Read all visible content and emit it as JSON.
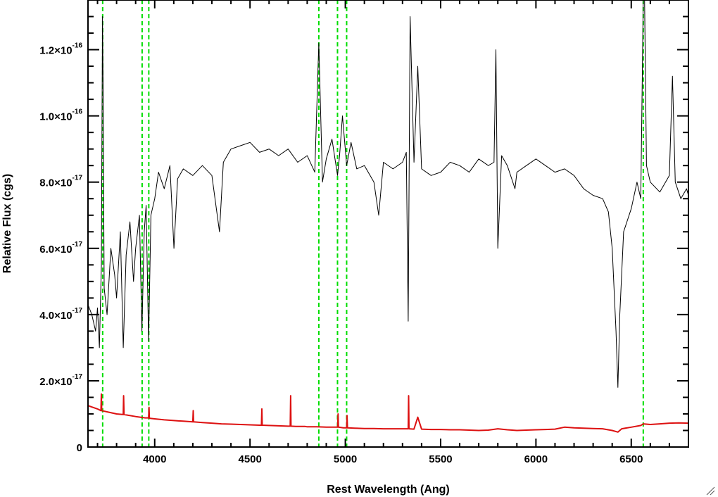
{
  "chart_data": {
    "type": "line",
    "title": "",
    "xlabel": "Rest Wavelength (Ang)",
    "ylabel": "Relative Flux (cgs)",
    "xlim": [
      3650,
      6800
    ],
    "ylim": [
      0,
      1.35e-16
    ],
    "x_ticks": [
      4000,
      4500,
      5000,
      5500,
      6000,
      6500
    ],
    "x_tick_labels": [
      "4000",
      "4500",
      "5000",
      "5500",
      "6000",
      "6500"
    ],
    "y_ticks": [
      {
        "value": 0,
        "mant": "0",
        "exp": ""
      },
      {
        "value": 2e-17,
        "mant": "2.0×10",
        "exp": "-17"
      },
      {
        "value": 4e-17,
        "mant": "4.0×10",
        "exp": "-17"
      },
      {
        "value": 6e-17,
        "mant": "6.0×10",
        "exp": "-17"
      },
      {
        "value": 8e-17,
        "mant": "8.0×10",
        "exp": "-17"
      },
      {
        "value": 1e-16,
        "mant": "1.0×10",
        "exp": "-16"
      },
      {
        "value": 1.2e-16,
        "mant": "1.2×10",
        "exp": "-16"
      }
    ],
    "grid": false,
    "legend": "none",
    "series": [
      {
        "role": "spectrum",
        "color": "#000000",
        "x": [
          3650,
          3670,
          3690,
          3700,
          3710,
          3720,
          3726,
          3729,
          3735,
          3750,
          3770,
          3790,
          3800,
          3820,
          3835,
          3850,
          3870,
          3889,
          3900,
          3920,
          3933,
          3945,
          3955,
          3968,
          3980,
          4000,
          4020,
          4050,
          4080,
          4101,
          4120,
          4150,
          4200,
          4250,
          4300,
          4340,
          4360,
          4400,
          4450,
          4500,
          4550,
          4600,
          4650,
          4700,
          4750,
          4800,
          4840,
          4861,
          4880,
          4900,
          4930,
          4959,
          4970,
          4985,
          5007,
          5030,
          5060,
          5100,
          5150,
          5175,
          5200,
          5250,
          5300,
          5320,
          5330,
          5340,
          5360,
          5380,
          5400,
          5450,
          5500,
          5550,
          5600,
          5650,
          5700,
          5750,
          5780,
          5790,
          5800,
          5820,
          5850,
          5890,
          5900,
          5950,
          6000,
          6050,
          6100,
          6150,
          6200,
          6250,
          6300,
          6350,
          6380,
          6400,
          6420,
          6430,
          6440,
          6460,
          6500,
          6530,
          6550,
          6563,
          6570,
          6580,
          6600,
          6650,
          6700,
          6716,
          6731,
          6760,
          6790,
          6800
        ],
        "y": [
          4.3e-17,
          4e-17,
          3.5e-17,
          4.2e-17,
          3e-17,
          5.5e-17,
          1.3e-16,
          1.1e-16,
          4.8e-17,
          4e-17,
          6e-17,
          5.2e-17,
          4.5e-17,
          6.5e-17,
          3e-17,
          5.8e-17,
          6.8e-17,
          5e-17,
          6e-17,
          7e-17,
          3.5e-17,
          6.5e-17,
          7.3e-17,
          3.2e-17,
          7e-17,
          7.5e-17,
          8.3e-17,
          7.8e-17,
          8.5e-17,
          6e-17,
          8.1e-17,
          8.4e-17,
          8.2e-17,
          8.5e-17,
          8.2e-17,
          6.5e-17,
          8.6e-17,
          9e-17,
          9.1e-17,
          9.2e-17,
          8.9e-17,
          9e-17,
          8.8e-17,
          9e-17,
          8.6e-17,
          8.8e-17,
          8.3e-17,
          1.22e-16,
          8e-17,
          8.7e-17,
          9.3e-17,
          8.2e-17,
          8.8e-17,
          1e-16,
          8.5e-17,
          9.2e-17,
          8.4e-17,
          8.5e-17,
          8e-17,
          7e-17,
          8.6e-17,
          8.4e-17,
          8.6e-17,
          8.9e-17,
          3.8e-17,
          1.3e-16,
          8.6e-17,
          1.15e-16,
          8.4e-17,
          8.2e-17,
          8.3e-17,
          8.6e-17,
          8.5e-17,
          8.3e-17,
          8.7e-17,
          8.5e-17,
          8.6e-17,
          1.2e-16,
          6e-17,
          8.8e-17,
          8.5e-17,
          7.8e-17,
          8.3e-17,
          8.5e-17,
          8.7e-17,
          8.5e-17,
          8.3e-17,
          8.4e-17,
          8.2e-17,
          7.8e-17,
          7.6e-17,
          7.5e-17,
          7.1e-17,
          6e-17,
          3.5e-17,
          1.8e-17,
          4e-17,
          6.5e-17,
          7.2e-17,
          8e-17,
          7.5e-17,
          1.35e-16,
          1.35e-16,
          8.5e-17,
          8e-17,
          7.7e-17,
          8.2e-17,
          1.12e-16,
          8e-17,
          7.5e-17,
          7.8e-17,
          7.6e-17
        ]
      },
      {
        "role": "error",
        "color": "#dd1111",
        "x": [
          3650,
          3700,
          3718,
          3720,
          3722,
          3760,
          3800,
          3835,
          3837,
          3839,
          3900,
          3950,
          3968,
          3970,
          3972,
          4000,
          4050,
          4100,
          4150,
          4200,
          4202,
          4204,
          4250,
          4300,
          4350,
          4400,
          4450,
          4500,
          4550,
          4560,
          4562,
          4564,
          4600,
          4650,
          4700,
          4711,
          4713,
          4715,
          4740,
          4790,
          4800,
          4840,
          4850,
          4900,
          4950,
          4960,
          4962,
          4964,
          4990,
          5007,
          5009,
          5011,
          5050,
          5100,
          5150,
          5200,
          5250,
          5300,
          5320,
          5330,
          5332,
          5334,
          5360,
          5380,
          5400,
          5450,
          5500,
          5550,
          5600,
          5650,
          5700,
          5750,
          5800,
          5850,
          5900,
          5950,
          6000,
          6050,
          6100,
          6150,
          6200,
          6250,
          6300,
          6350,
          6400,
          6430,
          6450,
          6500,
          6550,
          6563,
          6600,
          6650,
          6700,
          6750,
          6800
        ],
        "y": [
          1.25e-17,
          1.15e-17,
          1.1e-17,
          1.6e-17,
          1.1e-17,
          1.05e-17,
          1e-17,
          9.8e-18,
          1.55e-17,
          9.8e-18,
          9.2e-18,
          8.8e-18,
          8.8e-18,
          1.2e-17,
          8.7e-18,
          8.5e-18,
          8.2e-18,
          8e-18,
          7.8e-18,
          7.6e-18,
          1.1e-17,
          7.6e-18,
          7.4e-18,
          7.2e-18,
          7e-18,
          6.9e-18,
          6.8e-18,
          6.7e-18,
          6.6e-18,
          6.6e-18,
          1.15e-17,
          6.6e-18,
          6.5e-18,
          6.4e-18,
          6.3e-18,
          6.3e-18,
          1.55e-17,
          6.3e-18,
          6.2e-18,
          6.2e-18,
          6.1e-18,
          6.1e-18,
          6.1e-18,
          6e-18,
          6e-18,
          6e-18,
          1e-17,
          6e-18,
          5.8e-18,
          5.8e-18,
          9.5e-18,
          5.8e-18,
          5.7e-18,
          5.6e-18,
          5.6e-18,
          5.5e-18,
          5.5e-18,
          5.5e-18,
          5.5e-18,
          5.5e-18,
          1.55e-17,
          5.5e-18,
          5.4e-18,
          9e-18,
          5.4e-18,
          5.3e-18,
          5.3e-18,
          5.2e-18,
          5.2e-18,
          5.1e-18,
          5e-18,
          5.1e-18,
          5.5e-18,
          5.2e-18,
          5e-18,
          5.1e-18,
          5.2e-18,
          5.3e-18,
          5.4e-18,
          6e-18,
          5.8e-18,
          5.7e-18,
          5.6e-18,
          5.5e-18,
          5e-18,
          4.5e-18,
          5.5e-18,
          6e-18,
          6.5e-18,
          7e-18,
          6.8e-18,
          7e-18,
          7.2e-18,
          7.3e-18,
          7.2e-18
        ]
      }
    ],
    "vertical_lines": {
      "color": "#00dd00",
      "style": "dashed",
      "x": [
        3727,
        3934,
        3969,
        4861,
        4959,
        5007,
        6563
      ]
    }
  }
}
